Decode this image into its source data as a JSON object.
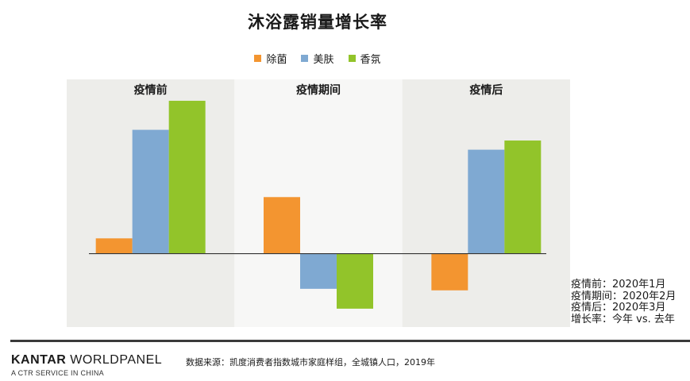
{
  "chart_data": {
    "type": "bar",
    "title": "沐浴露销量增长率",
    "categories": [
      "疫情前",
      "疫情期间",
      "疫情后"
    ],
    "series": [
      {
        "name": "除菌",
        "values": [
          10,
          37,
          -24
        ]
      },
      {
        "name": "美肤",
        "values": [
          81,
          -23,
          68
        ]
      },
      {
        "name": "香氛",
        "values": [
          100,
          -36,
          74
        ]
      }
    ],
    "colors": [
      "#f39530",
      "#7fa9d2",
      "#92c42a"
    ],
    "panel_colors": [
      "#ededea",
      "#f7f7f6",
      "#ededea"
    ],
    "xlabel": "",
    "ylabel": "",
    "ylim": [
      -48,
      114
    ],
    "grid": false,
    "legend_position": "top-center"
  },
  "notes": [
    "疫情前：2020年1月",
    "疫情期间：2020年2月",
    "疫情后：2020年3月",
    "增长率：今年 vs. 去年"
  ],
  "footer": {
    "brand_bold": "KANTAR",
    "brand_rest": " WORLDPANEL",
    "brand_sub": "A CTR SERVICE IN CHINA",
    "source": "数据来源：凯度消费者指数城市家庭样组，全城镇人口，2019年"
  }
}
